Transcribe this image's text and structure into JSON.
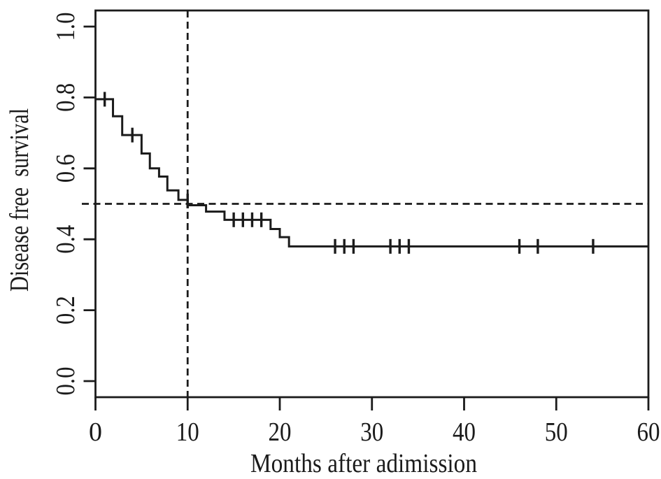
{
  "figure": {
    "background_color": "#ffffff",
    "line_color": "#1b1b1b"
  },
  "chart_data": {
    "type": "line",
    "subtype": "kaplan_meier_step_curve",
    "title": "",
    "xlabel": "Months after adimission",
    "ylabel": "Disease free  survival",
    "xlim": [
      0,
      60
    ],
    "ylim": [
      0,
      1
    ],
    "x_ticks": [
      0,
      10,
      20,
      30,
      40,
      50,
      60
    ],
    "y_ticks": [
      1.0,
      0.8,
      0.6,
      0.4,
      0.2,
      0.0
    ],
    "y_tick_labels": [
      "1.0",
      "0.8",
      "0.6",
      "0.4",
      "0.2",
      "0.0"
    ],
    "grid": false,
    "legend": "none",
    "series": [
      {
        "name": "Disease free survival",
        "start": {
          "t": 0,
          "s": 0.795
        },
        "drops": [
          [
            1.9,
            0.747
          ],
          [
            2.9,
            0.694
          ],
          [
            5.0,
            0.642
          ],
          [
            5.9,
            0.6
          ],
          [
            6.9,
            0.577
          ],
          [
            7.8,
            0.538
          ],
          [
            9.0,
            0.511
          ],
          [
            10.0,
            0.496
          ],
          [
            12.0,
            0.478
          ],
          [
            14.0,
            0.455
          ],
          [
            19.0,
            0.429
          ],
          [
            20.0,
            0.406
          ],
          [
            21.0,
            0.38
          ]
        ],
        "end_t": 60,
        "median_survival_months": 10,
        "plateau_value": 0.38
      }
    ],
    "censor_marks": [
      [
        1.0,
        0.795
      ],
      [
        4.0,
        0.694
      ],
      [
        10.0,
        0.508
      ],
      [
        15.0,
        0.455
      ],
      [
        16.0,
        0.455
      ],
      [
        17.0,
        0.455
      ],
      [
        18.0,
        0.455
      ],
      [
        26.0,
        0.38
      ],
      [
        27.0,
        0.38
      ],
      [
        28.0,
        0.38
      ],
      [
        32.0,
        0.38
      ],
      [
        33.0,
        0.38
      ],
      [
        34.0,
        0.38
      ],
      [
        46.0,
        0.38
      ],
      [
        48.0,
        0.38
      ],
      [
        54.0,
        0.38
      ]
    ],
    "reference_lines": [
      {
        "orientation": "horizontal",
        "value": 0.5,
        "style": "dashed"
      },
      {
        "orientation": "vertical",
        "value": 10,
        "style": "dashed"
      }
    ]
  }
}
